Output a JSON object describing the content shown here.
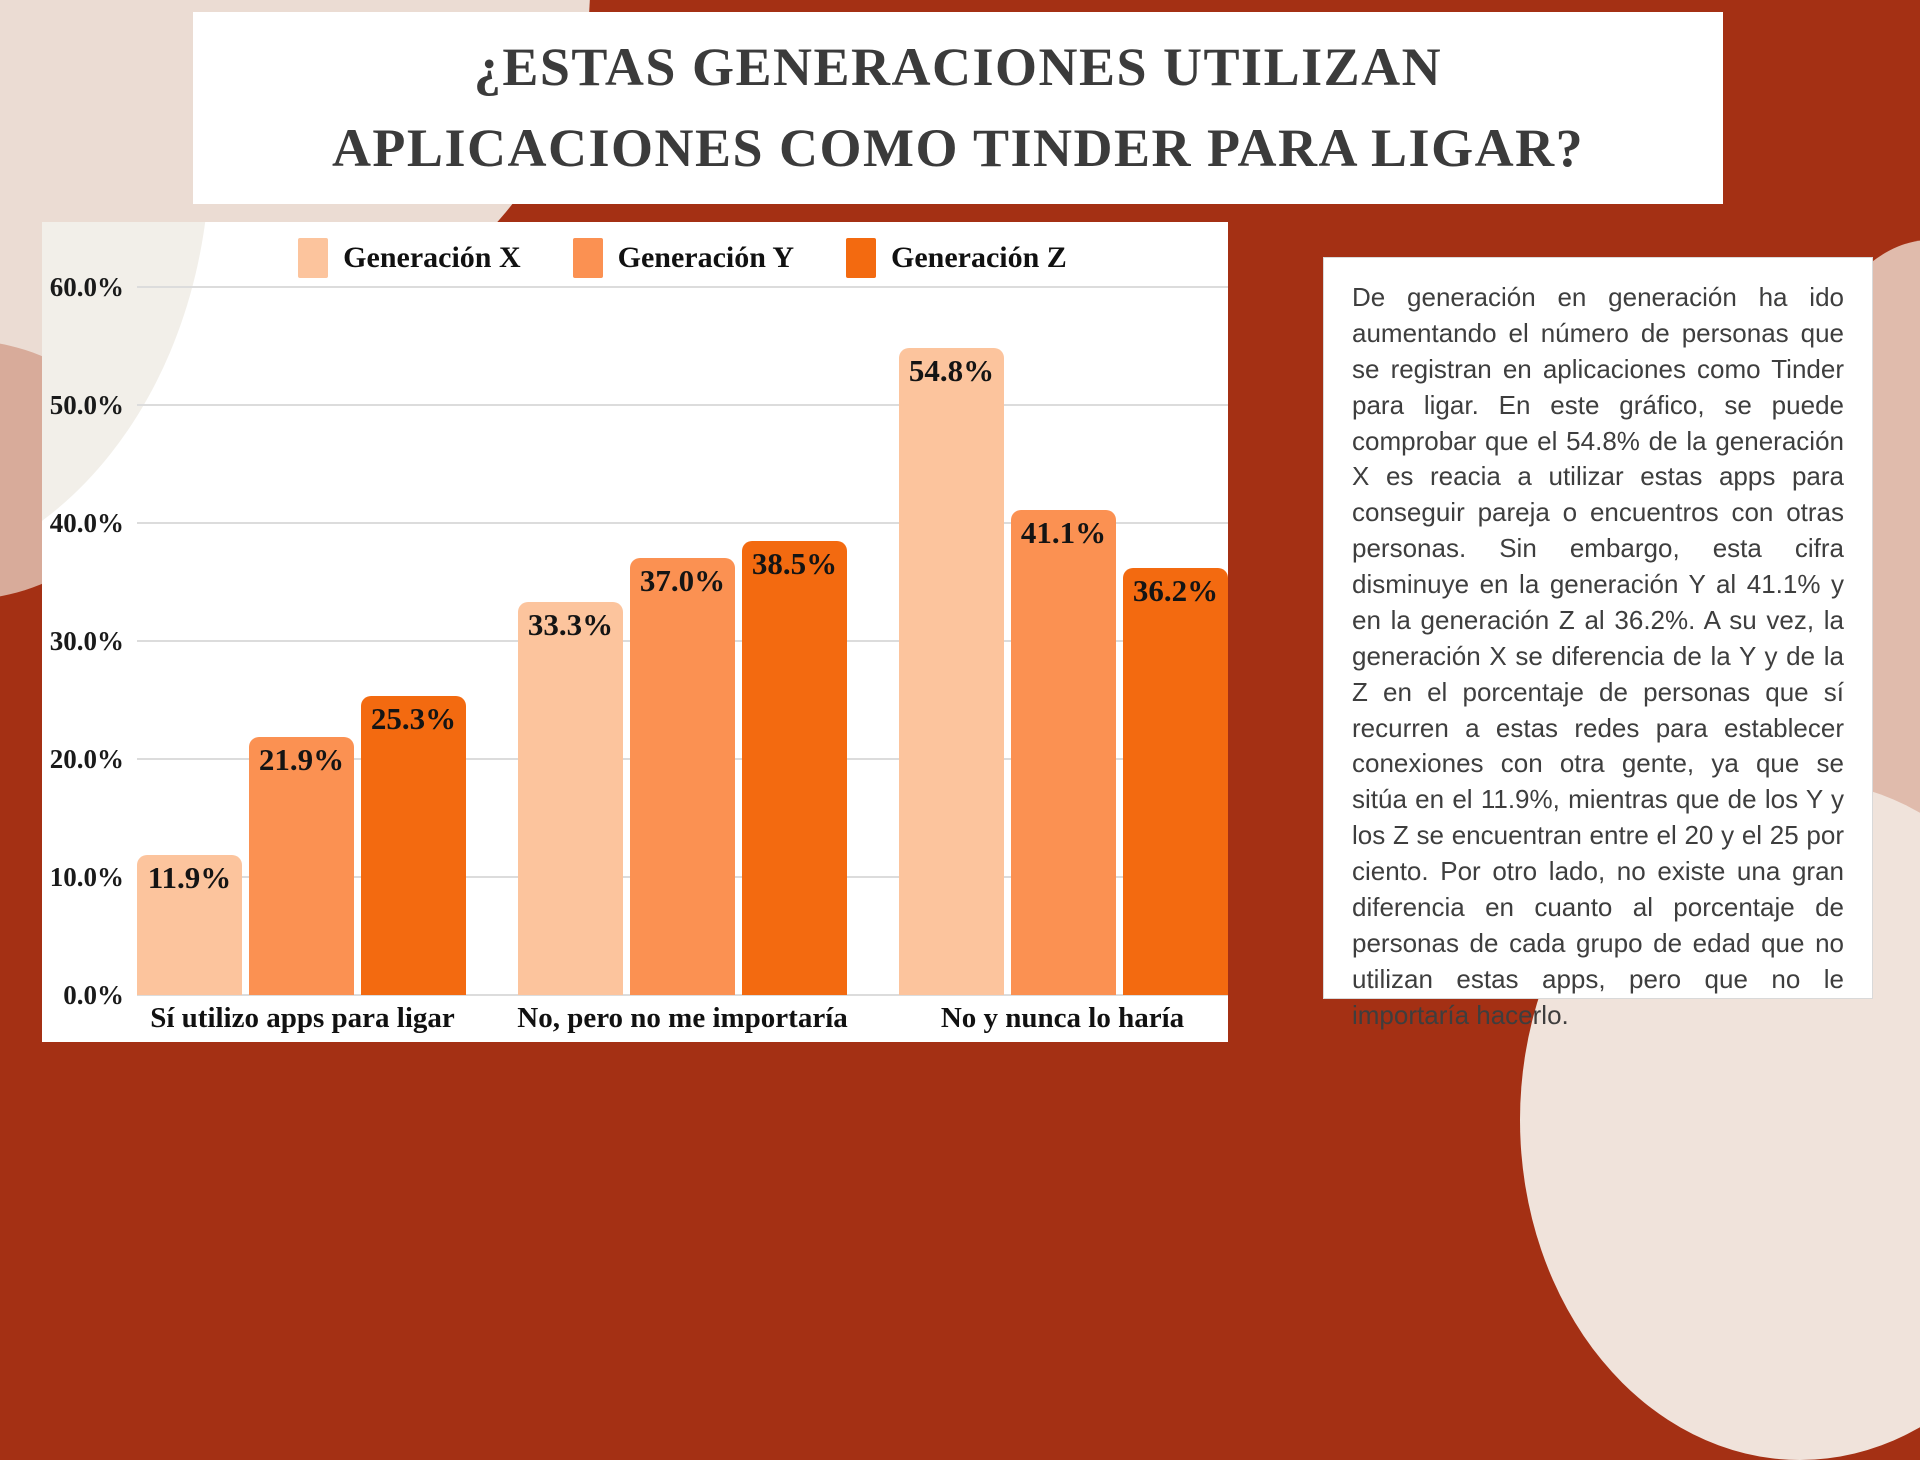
{
  "header": {
    "title_line1": "¿ESTAS GENERACIONES UTILIZAN",
    "title_line2": "APLICACIONES COMO TINDER PARA LIGAR?"
  },
  "chart_data": {
    "type": "bar",
    "title": "",
    "categories": [
      "Sí utilizo apps para ligar",
      "No, pero no me importaría",
      "No y nunca lo haría"
    ],
    "series": [
      {
        "name": "Generación X",
        "color": "#FCC49D",
        "values": [
          11.9,
          33.3,
          54.8
        ]
      },
      {
        "name": "Generación Y",
        "color": "#FB9152",
        "values": [
          21.9,
          37.0,
          41.1
        ]
      },
      {
        "name": "Generación Z",
        "color": "#F36A10",
        "values": [
          25.3,
          38.5,
          36.2
        ]
      }
    ],
    "data_label_format": "one-decimal-percent",
    "y_axis": {
      "min": 0,
      "max": 60,
      "step": 10,
      "tick_labels": [
        "0.0%",
        "10.0%",
        "20.0%",
        "30.0%",
        "40.0%",
        "50.0%",
        "60.0%"
      ]
    },
    "ylim": [
      0,
      60
    ],
    "grid": true,
    "legend_position": "top"
  },
  "description": {
    "paragraph": "De generación en generación ha ido aumentando el número de personas que se registran en aplicaciones como Tinder para ligar. En este gráfico, se puede comprobar que el 54.8% de la generación X es reacia a utilizar estas apps para conseguir pareja o encuentros con otras personas. Sin embargo, esta cifra disminuye en la generación Y al 41.1% y en la generación Z al 36.2%. A su vez, la generación X se diferencia de la Y y de la Z en el porcentaje de personas que sí recurren a estas redes para establecer conexiones con otra gente, ya que se sitúa en el 11.9%, mientras que de los Y y los Z se encuentran entre el 20 y el 25 por ciento. Por otro lado, no existe una gran diferencia en cuanto al porcentaje de personas de cada grupo de edad que no utilizan estas apps, pero que no le importaría hacerlo."
  },
  "theme": {
    "background": "#A43014",
    "panel": "#FFFFFF",
    "gridline": "#DCDCDC",
    "title_color": "#3B3B3B",
    "body_text_color": "#3E3E3E",
    "blob_pale": "#EBDCD3",
    "blob_rose": "#D8AB9A",
    "blob_cream": "#F2EFE9",
    "blob_right": "#E0BBAC",
    "blob_bottom_right": "#F0E3DB"
  }
}
